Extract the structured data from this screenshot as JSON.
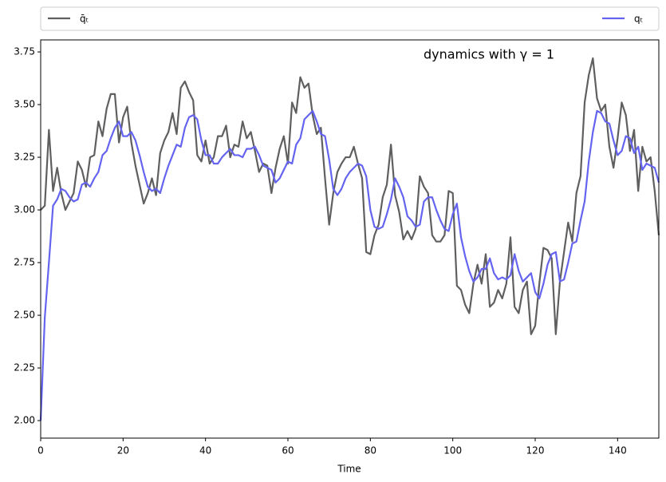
{
  "chart_data": {
    "type": "line",
    "annotation": "dynamics with γ = 1",
    "x_label": "Time",
    "legend": "top",
    "x": [
      0,
      1,
      2,
      3,
      4,
      5,
      6,
      7,
      8,
      9,
      10,
      11,
      12,
      13,
      14,
      15,
      16,
      17,
      18,
      19,
      20,
      21,
      22,
      23,
      24,
      25,
      26,
      27,
      28,
      29,
      30,
      31,
      32,
      33,
      34,
      35,
      36,
      37,
      38,
      39,
      40,
      41,
      42,
      43,
      44,
      45,
      46,
      47,
      48,
      49,
      50,
      51,
      52,
      53,
      54,
      55,
      56,
      57,
      58,
      59,
      60,
      61,
      62,
      63,
      64,
      65,
      66,
      67,
      68,
      69,
      70,
      71,
      72,
      73,
      74,
      75,
      76,
      77,
      78,
      79,
      80,
      81,
      82,
      83,
      84,
      85,
      86,
      87,
      88,
      89,
      90,
      91,
      92,
      93,
      94,
      95,
      96,
      97,
      98,
      99,
      100,
      101,
      102,
      103,
      104,
      105,
      106,
      107,
      108,
      109,
      110,
      111,
      112,
      113,
      114,
      115,
      116,
      117,
      118,
      119,
      120,
      121,
      122,
      123,
      124,
      125,
      126,
      127,
      128,
      129,
      130,
      131,
      132,
      133,
      134,
      135,
      136,
      137,
      138,
      139,
      140,
      141,
      142,
      143,
      144,
      145,
      146,
      147,
      148,
      149,
      150
    ],
    "series": [
      {
        "name": "q̄ₜ",
        "color": "#5f5f5f",
        "values": [
          3.0,
          3.02,
          3.38,
          3.09,
          3.2,
          3.08,
          3.0,
          3.04,
          3.08,
          3.23,
          3.19,
          3.11,
          3.25,
          3.26,
          3.42,
          3.35,
          3.48,
          3.55,
          3.55,
          3.32,
          3.44,
          3.49,
          3.32,
          3.21,
          3.12,
          3.03,
          3.08,
          3.15,
          3.07,
          3.27,
          3.33,
          3.37,
          3.46,
          3.36,
          3.58,
          3.61,
          3.56,
          3.52,
          3.26,
          3.23,
          3.33,
          3.22,
          3.25,
          3.35,
          3.35,
          3.4,
          3.25,
          3.31,
          3.3,
          3.42,
          3.34,
          3.37,
          3.28,
          3.18,
          3.22,
          3.21,
          3.08,
          3.2,
          3.29,
          3.35,
          3.22,
          3.51,
          3.46,
          3.63,
          3.58,
          3.6,
          3.45,
          3.36,
          3.39,
          3.15,
          2.93,
          3.08,
          3.18,
          3.22,
          3.25,
          3.25,
          3.3,
          3.22,
          3.15,
          2.8,
          2.79,
          2.88,
          2.93,
          3.06,
          3.12,
          3.31,
          3.07,
          2.99,
          2.86,
          2.9,
          2.86,
          2.91,
          3.16,
          3.11,
          3.08,
          2.88,
          2.85,
          2.85,
          2.88,
          3.09,
          3.08,
          2.64,
          2.62,
          2.55,
          2.51,
          2.65,
          2.74,
          2.65,
          2.79,
          2.54,
          2.56,
          2.62,
          2.58,
          2.65,
          2.87,
          2.54,
          2.51,
          2.62,
          2.66,
          2.41,
          2.45,
          2.65,
          2.82,
          2.81,
          2.77,
          2.41,
          2.66,
          2.8,
          2.94,
          2.85,
          3.08,
          3.16,
          3.51,
          3.64,
          3.72,
          3.53,
          3.47,
          3.5,
          3.3,
          3.2,
          3.34,
          3.51,
          3.45,
          3.28,
          3.38,
          3.09,
          3.3,
          3.23,
          3.25,
          3.09,
          2.88
        ]
      },
      {
        "name": "qₜ",
        "color": "#6464f0",
        "values": [
          2.0,
          2.49,
          2.75,
          3.02,
          3.05,
          3.1,
          3.09,
          3.06,
          3.04,
          3.05,
          3.12,
          3.13,
          3.11,
          3.15,
          3.18,
          3.26,
          3.28,
          3.34,
          3.39,
          3.42,
          3.35,
          3.35,
          3.37,
          3.33,
          3.26,
          3.18,
          3.11,
          3.09,
          3.1,
          3.08,
          3.15,
          3.21,
          3.26,
          3.31,
          3.3,
          3.39,
          3.44,
          3.45,
          3.43,
          3.33,
          3.26,
          3.26,
          3.22,
          3.22,
          3.25,
          3.27,
          3.29,
          3.26,
          3.26,
          3.25,
          3.29,
          3.29,
          3.3,
          3.26,
          3.21,
          3.2,
          3.19,
          3.13,
          3.15,
          3.19,
          3.23,
          3.22,
          3.31,
          3.34,
          3.43,
          3.45,
          3.47,
          3.42,
          3.36,
          3.35,
          3.24,
          3.1,
          3.07,
          3.1,
          3.15,
          3.18,
          3.2,
          3.22,
          3.21,
          3.16,
          3.0,
          2.92,
          2.91,
          2.92,
          2.98,
          3.05,
          3.15,
          3.11,
          3.06,
          2.97,
          2.95,
          2.92,
          2.93,
          3.04,
          3.06,
          3.06,
          3.0,
          2.95,
          2.91,
          2.9,
          2.98,
          3.03,
          2.87,
          2.78,
          2.71,
          2.66,
          2.68,
          2.72,
          2.72,
          2.77,
          2.7,
          2.67,
          2.68,
          2.67,
          2.69,
          2.79,
          2.71,
          2.66,
          2.68,
          2.7,
          2.61,
          2.58,
          2.65,
          2.74,
          2.79,
          2.8,
          2.66,
          2.67,
          2.75,
          2.84,
          2.85,
          2.95,
          3.04,
          3.23,
          3.37,
          3.47,
          3.46,
          3.42,
          3.41,
          3.33,
          3.26,
          3.28,
          3.35,
          3.34,
          3.27,
          3.3,
          3.19,
          3.22,
          3.21,
          3.2,
          3.13
        ]
      }
    ],
    "xlim": [
      0,
      150
    ],
    "xticks": [
      0,
      20,
      40,
      60,
      80,
      100,
      120,
      140
    ],
    "ylim": [
      1.917,
      3.807
    ],
    "yticks": [
      {
        "value": 2,
        "label": "2.00"
      },
      {
        "value": 2.25,
        "label": "2.25"
      },
      {
        "value": 2.5,
        "label": "2.50"
      },
      {
        "value": 2.75,
        "label": "2.75"
      },
      {
        "value": 3,
        "label": "3.00"
      },
      {
        "value": 3.25,
        "label": "3.25"
      },
      {
        "value": 3.5,
        "label": "3.50"
      },
      {
        "value": 3.75,
        "label": "3.75"
      }
    ]
  }
}
